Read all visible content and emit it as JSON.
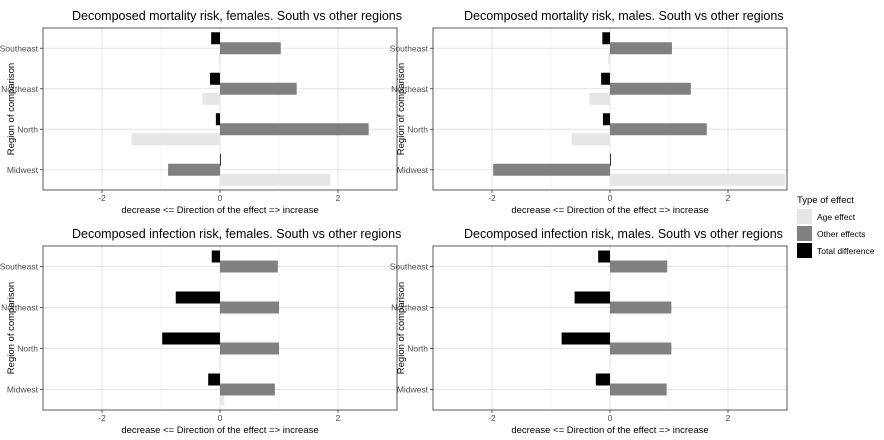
{
  "chart_data": {
    "type": "bar",
    "orientation": "horizontal",
    "categories": [
      "Southeast",
      "Northeast",
      "North",
      "Midwest"
    ],
    "xlabel": "decrease <= Direction of the effect => increase",
    "ylabel": "Region of comparison",
    "xlim": [
      -3,
      3
    ],
    "xticks": [
      -2,
      0,
      2
    ],
    "grid": true,
    "legend": {
      "title": "Type of effect",
      "placement": "right",
      "items": [
        {
          "name": "Age effect",
          "color": "#e6e6e6"
        },
        {
          "name": "Other effects",
          "color": "#808080"
        },
        {
          "name": "Total difference",
          "color": "#000000"
        }
      ]
    },
    "panels": [
      {
        "title": "Decomposed mortality risk, females. South vs other regions",
        "series": [
          {
            "name": "Age effect",
            "values": [
              -0.02,
              -0.3,
              -1.5,
              1.87
            ]
          },
          {
            "name": "Other effects",
            "values": [
              1.03,
              1.3,
              2.52,
              -0.88
            ]
          },
          {
            "name": "Total difference",
            "values": [
              -0.15,
              -0.17,
              -0.07,
              0.0
            ]
          }
        ]
      },
      {
        "title": "Decomposed mortality risk, males. South vs other regions",
        "series": [
          {
            "name": "Age effect",
            "values": [
              -0.03,
              -0.35,
              -0.65,
              2.97
            ]
          },
          {
            "name": "Other effects",
            "values": [
              1.05,
              1.37,
              1.64,
              -1.98
            ]
          },
          {
            "name": "Total difference",
            "values": [
              -0.13,
              -0.15,
              -0.12,
              0.0
            ]
          }
        ]
      },
      {
        "title": "Decomposed infection risk, females. South vs other regions",
        "series": [
          {
            "name": "Age effect",
            "values": [
              0.0,
              0.0,
              0.0,
              0.07
            ]
          },
          {
            "name": "Other effects",
            "values": [
              0.98,
              1.0,
              1.0,
              0.93
            ]
          },
          {
            "name": "Total difference",
            "values": [
              -0.14,
              -0.75,
              -0.98,
              -0.2
            ]
          }
        ]
      },
      {
        "title": "Decomposed infection risk, males. South vs other regions",
        "series": [
          {
            "name": "Age effect",
            "values": [
              0.0,
              0.0,
              0.0,
              0.0
            ]
          },
          {
            "name": "Other effects",
            "values": [
              0.97,
              1.04,
              1.04,
              0.96
            ]
          },
          {
            "name": "Total difference",
            "values": [
              -0.2,
              -0.6,
              -0.82,
              -0.24
            ]
          }
        ]
      }
    ]
  }
}
